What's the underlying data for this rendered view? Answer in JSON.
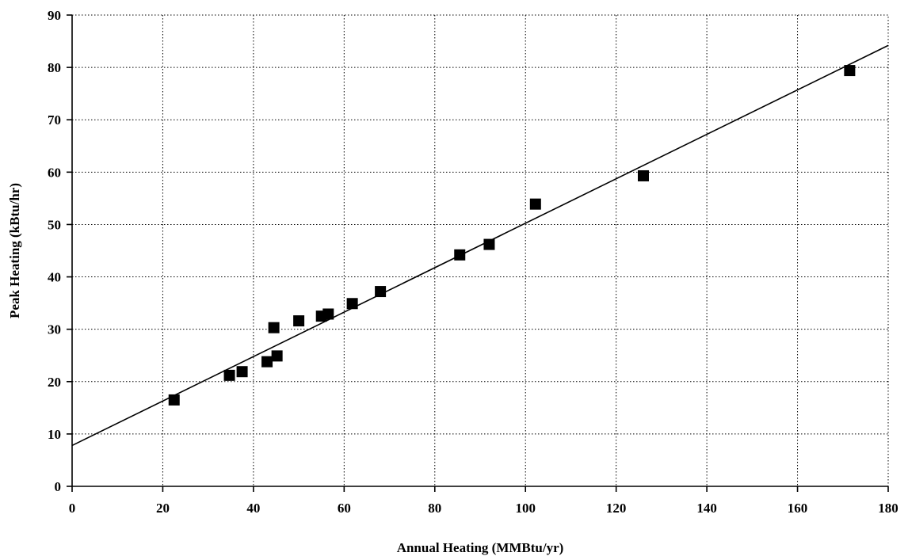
{
  "chart_data": {
    "type": "scatter",
    "xlabel": "Annual Heating (MMBtu/yr)",
    "ylabel": "Peak Heating (kBtu/hr)",
    "xlim": [
      0,
      180
    ],
    "ylim": [
      0,
      90
    ],
    "x_ticks": [
      0,
      20,
      40,
      60,
      80,
      100,
      120,
      140,
      160,
      180
    ],
    "y_ticks": [
      0,
      10,
      20,
      30,
      40,
      50,
      60,
      70,
      80,
      90
    ],
    "grid": true,
    "marker_color": "#000000",
    "series": [
      {
        "marker": "square",
        "points": [
          {
            "x": 22.5,
            "y": 16.5
          },
          {
            "x": 34.7,
            "y": 21.2
          },
          {
            "x": 37.5,
            "y": 21.9
          },
          {
            "x": 43.0,
            "y": 23.8
          },
          {
            "x": 44.5,
            "y": 30.3
          },
          {
            "x": 45.2,
            "y": 24.9
          },
          {
            "x": 50.0,
            "y": 31.6
          },
          {
            "x": 55.0,
            "y": 32.5
          },
          {
            "x": 56.5,
            "y": 32.9
          },
          {
            "x": 61.8,
            "y": 34.9
          },
          {
            "x": 68.0,
            "y": 37.2
          },
          {
            "x": 85.5,
            "y": 44.2
          },
          {
            "x": 92.0,
            "y": 46.2
          },
          {
            "x": 102.2,
            "y": 53.9
          },
          {
            "x": 126.0,
            "y": 59.3
          },
          {
            "x": 171.5,
            "y": 79.4
          }
        ]
      }
    ],
    "trend_line": {
      "from": {
        "x": 0,
        "y": 7.8
      },
      "to": {
        "x": 180,
        "y": 84.2
      }
    }
  }
}
